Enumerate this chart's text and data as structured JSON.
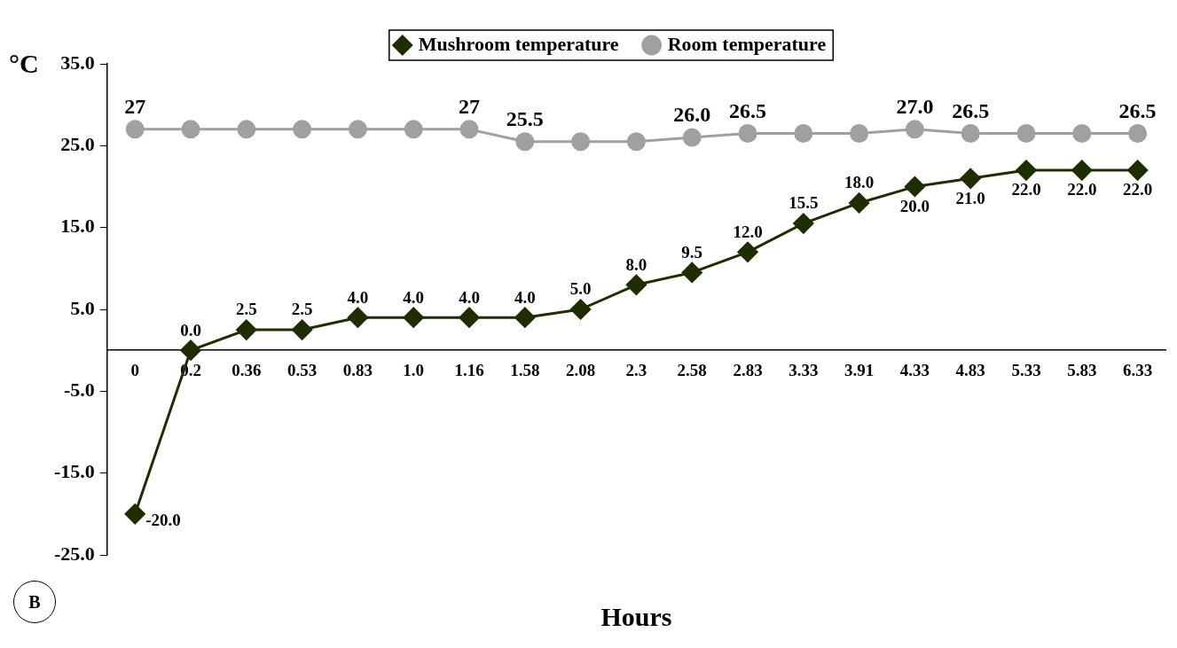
{
  "chart_data": {
    "type": "line",
    "xlabel": "Hours",
    "ylabel": "°C",
    "annotations": [
      "B"
    ],
    "categories": [
      "0",
      "0.2",
      "0.36",
      "0.53",
      "0.83",
      "1.0",
      "1.16",
      "1.58",
      "2.08",
      "2.3",
      "2.58",
      "2.83",
      "3.33",
      "3.91",
      "4.33",
      "4.83",
      "5.33",
      "5.83",
      "6.33"
    ],
    "series": [
      {
        "name": "Mushroom temperature",
        "color": "#1f2e00",
        "marker": "diamond",
        "values": [
          -20,
          0,
          2.5,
          2.5,
          4,
          4,
          4,
          4,
          5,
          8,
          9.5,
          12,
          15.5,
          18,
          20,
          21,
          22,
          22,
          22
        ],
        "value_labels": [
          "-20.0",
          "0.0",
          "2.5",
          "2.5",
          "4.0",
          "4.0",
          "4.0",
          "4.0",
          "5.0",
          "8.0",
          "9.5",
          "12.0",
          "15.5",
          "18.0",
          "20.0",
          "21.0",
          "22.0",
          "22.0",
          "22.0"
        ]
      },
      {
        "name": "Room temperature",
        "color": "#a0a0a0",
        "marker": "circle",
        "values": [
          27,
          27,
          27,
          27,
          27,
          27,
          27,
          25.5,
          25.5,
          25.5,
          26,
          26.5,
          26.5,
          26.5,
          27,
          26.5,
          26.5,
          26.5,
          26.5
        ],
        "value_labels": [
          "27",
          null,
          null,
          null,
          null,
          null,
          "27",
          "25.5",
          null,
          null,
          "26.0",
          "26.5",
          null,
          null,
          "27.0",
          "26.5",
          null,
          null,
          "26.5"
        ]
      }
    ],
    "ylim": [
      -25,
      35
    ],
    "yticks": [
      {
        "value": -25,
        "label": "-25.0"
      },
      {
        "value": -15,
        "label": "-15.0"
      },
      {
        "value": -5,
        "label": "-5.0"
      },
      {
        "value": 5,
        "label": "5.0"
      },
      {
        "value": 15,
        "label": "15.0"
      },
      {
        "value": 25,
        "label": "25.0"
      },
      {
        "value": 35,
        "label": "35.0"
      }
    ],
    "grid": false,
    "legend": "top"
  }
}
